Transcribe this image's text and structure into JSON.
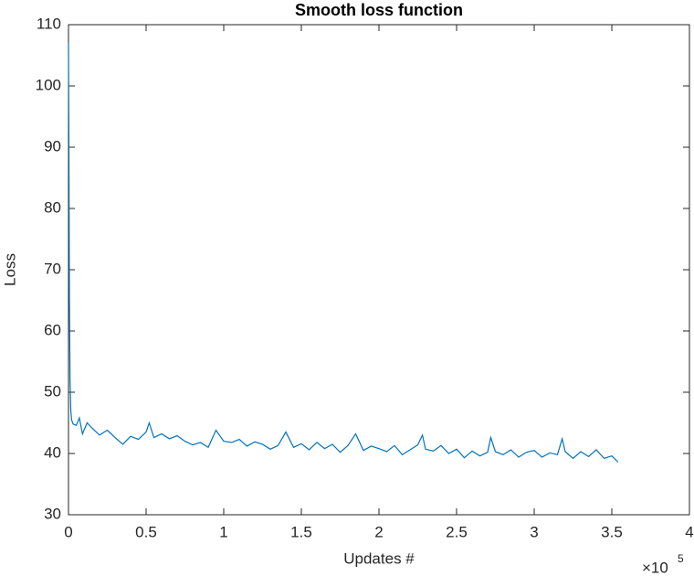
{
  "chart_data": {
    "type": "line",
    "title": "Smooth loss function",
    "x_label": "Updates #",
    "y_label": "Loss",
    "x_multiplier": {
      "base": "×10",
      "exponent": "5"
    },
    "xlim": [
      0,
      4
    ],
    "xticks": [
      0,
      0.5,
      1,
      1.5,
      2,
      2.5,
      3,
      3.5,
      4
    ],
    "ylim": [
      30,
      110
    ],
    "yticks": [
      30,
      40,
      50,
      60,
      70,
      80,
      90,
      100,
      110
    ],
    "grid": false,
    "x": [
      0,
      0.003,
      0.006,
      0.01,
      0.015,
      0.02,
      0.03,
      0.05,
      0.07,
      0.09,
      0.12,
      0.15,
      0.2,
      0.25,
      0.3,
      0.35,
      0.4,
      0.45,
      0.5,
      0.52,
      0.55,
      0.6,
      0.65,
      0.7,
      0.75,
      0.8,
      0.85,
      0.9,
      0.95,
      1.0,
      1.05,
      1.1,
      1.15,
      1.2,
      1.25,
      1.3,
      1.35,
      1.4,
      1.45,
      1.5,
      1.55,
      1.6,
      1.65,
      1.7,
      1.75,
      1.8,
      1.85,
      1.9,
      1.95,
      2.0,
      2.05,
      2.1,
      2.15,
      2.2,
      2.25,
      2.28,
      2.3,
      2.35,
      2.4,
      2.45,
      2.5,
      2.55,
      2.6,
      2.65,
      2.7,
      2.72,
      2.75,
      2.8,
      2.85,
      2.9,
      2.95,
      3.0,
      3.05,
      3.1,
      3.15,
      3.18,
      3.2,
      3.25,
      3.3,
      3.35,
      3.4,
      3.45,
      3.5,
      3.54
    ],
    "series": [
      {
        "color": "#0072bd",
        "values": [
          107,
          88,
          65,
          52,
          47,
          45.5,
          44.8,
          44.6,
          45.8,
          43.2,
          45,
          44.2,
          43,
          43.8,
          42.6,
          41.5,
          42.8,
          42.3,
          43.5,
          45,
          42.6,
          43.2,
          42.4,
          42.9,
          42,
          41.4,
          41.8,
          41,
          43.8,
          42,
          41.8,
          42.3,
          41.2,
          41.9,
          41.5,
          40.7,
          41.3,
          43.5,
          41,
          41.6,
          40.6,
          41.8,
          40.8,
          41.5,
          40.2,
          41.3,
          43.2,
          40.5,
          41.2,
          40.8,
          40.3,
          41.3,
          39.8,
          40.6,
          41.4,
          43,
          40.7,
          40.4,
          41.3,
          40,
          40.7,
          39.3,
          40.4,
          39.6,
          40.2,
          42.6,
          40.3,
          39.8,
          40.6,
          39.4,
          40.2,
          40.5,
          39.4,
          40.1,
          39.8,
          42.4,
          40.3,
          39.2,
          40.3,
          39.5,
          40.6,
          39.2,
          39.6,
          38.6
        ]
      }
    ]
  }
}
